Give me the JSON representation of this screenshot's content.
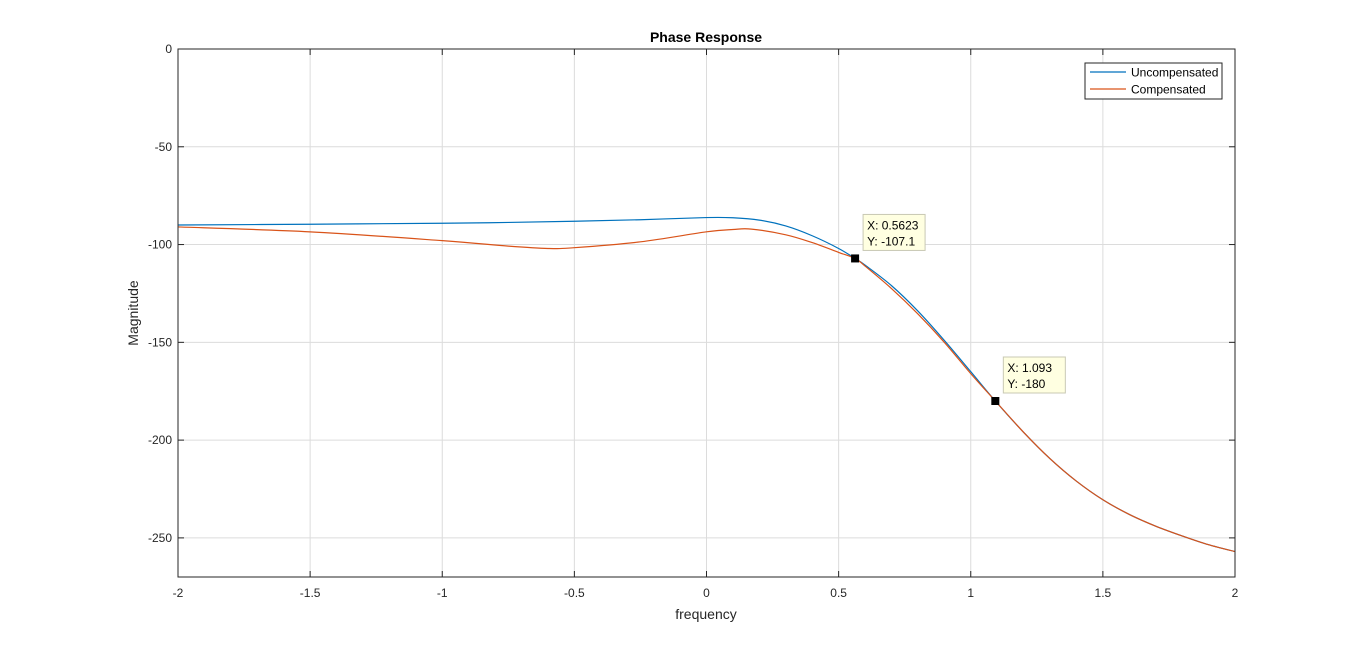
{
  "chart_data": {
    "type": "line",
    "title": "Phase Response",
    "xlabel": "frequency",
    "ylabel": "Magnitude",
    "xlim": [
      -2,
      2
    ],
    "ylim": [
      -270,
      0
    ],
    "xticks": [
      -2,
      -1.5,
      -1,
      -0.5,
      0,
      0.5,
      1,
      1.5,
      2
    ],
    "xtick_labels": [
      "-2",
      "-1.5",
      "-1",
      "-0.5",
      "0",
      "0.5",
      "1",
      "1.5",
      "2"
    ],
    "yticks": [
      0,
      -50,
      -100,
      -150,
      -200,
      -250
    ],
    "ytick_labels": [
      "0",
      "-50",
      "-100",
      "-150",
      "-200",
      "-250"
    ],
    "grid": true,
    "legend_position": "top-right",
    "series": [
      {
        "name": "Uncompensated",
        "color": "#0072BD",
        "x": [
          -2,
          -1.5,
          -1,
          -0.75,
          -0.5,
          -0.25,
          0,
          0.1,
          0.2,
          0.3,
          0.4,
          0.5,
          0.5623,
          0.6,
          0.7,
          0.8,
          0.9,
          1.0,
          1.093,
          1.2,
          1.3,
          1.4,
          1.5,
          1.6,
          1.7,
          1.8,
          1.9,
          2.0
        ],
        "y": [
          -90,
          -89.6,
          -89.1,
          -88.7,
          -88.1,
          -87.3,
          -86.2,
          -86.3,
          -87.5,
          -90.5,
          -95.5,
          -102,
          -107.1,
          -110.5,
          -121,
          -134,
          -149,
          -165,
          -180,
          -196,
          -209.5,
          -221,
          -230.5,
          -238,
          -244,
          -249,
          -253.5,
          -257
        ]
      },
      {
        "name": "Compensated",
        "color": "#D95319",
        "x": [
          -2,
          -1.5,
          -1,
          -0.75,
          -0.6,
          -0.5,
          -0.25,
          0,
          0.1,
          0.17,
          0.3,
          0.4,
          0.5,
          0.5623,
          0.6,
          0.7,
          0.8,
          0.9,
          1.0,
          1.093,
          1.2,
          1.3,
          1.4,
          1.5,
          1.6,
          1.7,
          1.8,
          1.9,
          2.0
        ],
        "y": [
          -91,
          -93.5,
          -98,
          -100.8,
          -102,
          -101.6,
          -98.6,
          -93.5,
          -92.3,
          -92.1,
          -95,
          -99,
          -104,
          -107.1,
          -111,
          -122.5,
          -135.5,
          -150,
          -166,
          -180,
          -196,
          -209.5,
          -221,
          -230.5,
          -238,
          -244,
          -249,
          -253.5,
          -257
        ]
      }
    ],
    "datatips": [
      {
        "x": 0.5623,
        "y": -107.1,
        "x_label": "X: 0.5623",
        "y_label": "Y: -107.1"
      },
      {
        "x": 1.093,
        "y": -180,
        "x_label": "X: 1.093",
        "y_label": "Y: -180"
      }
    ]
  }
}
